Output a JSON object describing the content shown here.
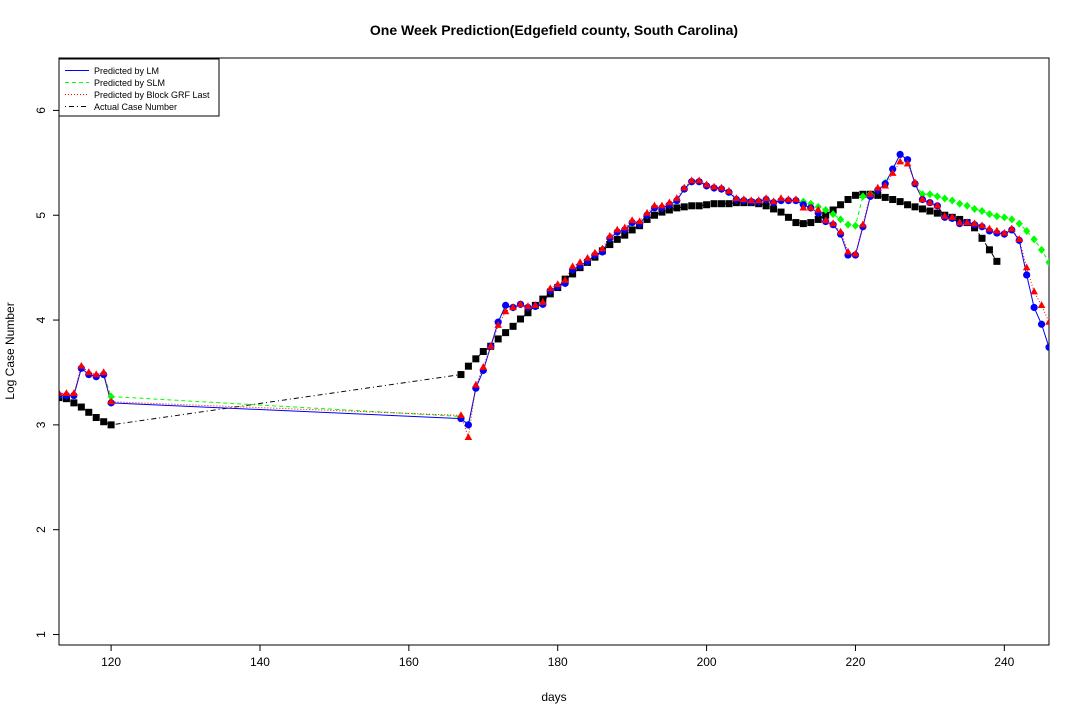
{
  "chart_data": {
    "type": "line",
    "title": "One Week Prediction(Edgefield county, South Carolina)",
    "xlabel": "days",
    "ylabel": "Log Case Number",
    "xlim": [
      113,
      246
    ],
    "ylim": [
      0.9,
      6.5
    ],
    "x_ticks": [
      120,
      140,
      160,
      180,
      200,
      220,
      240
    ],
    "y_ticks": [
      1,
      2,
      3,
      4,
      5,
      6
    ],
    "grid": false,
    "legend_position": "top-left",
    "series": [
      {
        "name": "Predicted by LM",
        "color": "#0000ff",
        "linestyle": "solid",
        "marker": "circle",
        "x": [
          113,
          114,
          115,
          116,
          117,
          118,
          119,
          120,
          167,
          168,
          169,
          170,
          171,
          172,
          173,
          174,
          175,
          176,
          177,
          178,
          179,
          180,
          181,
          182,
          183,
          184,
          185,
          186,
          187,
          188,
          189,
          190,
          191,
          192,
          193,
          194,
          195,
          196,
          197,
          198,
          199,
          200,
          201,
          202,
          203,
          204,
          205,
          206,
          207,
          208,
          209,
          210,
          211,
          212,
          213,
          214,
          215,
          216,
          217,
          218,
          219,
          220,
          221,
          222,
          223,
          224,
          225,
          226,
          227,
          228,
          229,
          230,
          231,
          232,
          233,
          234,
          235,
          236,
          237,
          238,
          239,
          240,
          241,
          242,
          243,
          244,
          245,
          246
        ],
        "y": [
          3.28,
          3.28,
          3.28,
          3.54,
          3.48,
          3.46,
          3.48,
          3.21,
          3.06,
          3.0,
          3.35,
          3.52,
          3.75,
          3.98,
          4.14,
          4.12,
          4.15,
          4.12,
          4.13,
          4.15,
          4.28,
          4.32,
          4.35,
          4.48,
          4.52,
          4.56,
          4.62,
          4.65,
          4.78,
          4.84,
          4.86,
          4.93,
          4.92,
          5.0,
          5.07,
          5.07,
          5.1,
          5.14,
          5.25,
          5.32,
          5.32,
          5.28,
          5.26,
          5.25,
          5.22,
          5.15,
          5.14,
          5.13,
          5.13,
          5.15,
          5.12,
          5.14,
          5.14,
          5.14,
          5.1,
          5.07,
          5.02,
          4.94,
          4.91,
          4.82,
          4.62,
          4.62,
          4.89,
          5.18,
          5.24,
          5.3,
          5.44,
          5.58,
          5.53,
          5.3,
          5.15,
          5.12,
          5.09,
          4.98,
          4.97,
          4.92,
          4.93,
          4.91,
          4.89,
          4.85,
          4.83,
          4.82,
          4.86,
          4.76,
          4.43,
          4.12,
          3.96,
          3.74
        ]
      },
      {
        "name": "Predicted by SLM",
        "color": "#00ff00",
        "linestyle": "dashed",
        "marker": "diamond",
        "x": [
          113,
          114,
          115,
          116,
          117,
          118,
          119,
          120,
          167,
          168,
          169,
          170,
          171,
          172,
          173,
          174,
          175,
          176,
          177,
          178,
          179,
          180,
          181,
          182,
          183,
          184,
          185,
          186,
          187,
          188,
          189,
          190,
          191,
          192,
          193,
          194,
          195,
          196,
          197,
          198,
          199,
          200,
          201,
          202,
          203,
          204,
          205,
          206,
          207,
          208,
          209,
          210,
          211,
          212,
          213,
          214,
          215,
          216,
          217,
          218,
          219,
          220,
          221,
          222,
          223,
          224,
          225,
          226,
          227,
          228,
          229,
          230,
          231,
          232,
          233,
          234,
          235,
          236,
          237,
          238,
          239,
          240,
          241,
          242,
          243,
          244,
          245,
          246
        ],
        "y": [
          3.28,
          3.28,
          3.29,
          3.54,
          3.48,
          3.46,
          3.48,
          3.27,
          3.08,
          3.0,
          3.35,
          3.52,
          3.75,
          3.98,
          4.14,
          4.12,
          4.15,
          4.12,
          4.13,
          4.15,
          4.28,
          4.32,
          4.35,
          4.48,
          4.52,
          4.56,
          4.62,
          4.65,
          4.78,
          4.84,
          4.86,
          4.93,
          4.92,
          5.0,
          5.07,
          5.07,
          5.1,
          5.14,
          5.25,
          5.32,
          5.32,
          5.28,
          5.26,
          5.25,
          5.22,
          5.15,
          5.14,
          5.13,
          5.13,
          5.15,
          5.12,
          5.14,
          5.14,
          5.14,
          5.13,
          5.11,
          5.08,
          5.05,
          5.01,
          4.96,
          4.91,
          4.9,
          5.18,
          5.2,
          5.24,
          5.31,
          5.44,
          5.58,
          5.52,
          5.3,
          5.2,
          5.2,
          5.18,
          5.16,
          5.14,
          5.11,
          5.09,
          5.06,
          5.04,
          5.01,
          4.99,
          4.98,
          4.96,
          4.92,
          4.85,
          4.77,
          4.67,
          4.55
        ]
      },
      {
        "name": "Predicted by Block GRF Last",
        "color": "#ff0000",
        "linestyle": "dotted",
        "marker": "triangle",
        "x": [
          113,
          114,
          115,
          116,
          117,
          118,
          119,
          120,
          167,
          168,
          169,
          170,
          171,
          172,
          173,
          174,
          175,
          176,
          177,
          178,
          179,
          180,
          181,
          182,
          183,
          184,
          185,
          186,
          187,
          188,
          189,
          190,
          191,
          192,
          193,
          194,
          195,
          196,
          197,
          198,
          199,
          200,
          201,
          202,
          203,
          204,
          205,
          206,
          207,
          208,
          209,
          210,
          211,
          212,
          213,
          214,
          215,
          216,
          217,
          218,
          219,
          220,
          221,
          222,
          223,
          224,
          225,
          226,
          227,
          228,
          229,
          230,
          231,
          232,
          233,
          234,
          235,
          236,
          237,
          238,
          239,
          240,
          241,
          242,
          243,
          244,
          245,
          246
        ],
        "y": [
          3.3,
          3.3,
          3.3,
          3.56,
          3.5,
          3.48,
          3.5,
          3.22,
          3.09,
          2.88,
          3.38,
          3.55,
          3.75,
          3.95,
          4.08,
          4.12,
          4.15,
          4.13,
          4.14,
          4.17,
          4.3,
          4.34,
          4.38,
          4.51,
          4.55,
          4.59,
          4.64,
          4.68,
          4.8,
          4.86,
          4.88,
          4.95,
          4.94,
          5.02,
          5.09,
          5.09,
          5.12,
          5.16,
          5.26,
          5.33,
          5.33,
          5.29,
          5.27,
          5.26,
          5.23,
          5.16,
          5.15,
          5.14,
          5.14,
          5.16,
          5.13,
          5.16,
          5.15,
          5.15,
          5.07,
          5.07,
          5.05,
          4.95,
          4.92,
          4.84,
          4.65,
          4.63,
          4.91,
          5.2,
          5.26,
          5.28,
          5.4,
          5.51,
          5.49,
          5.31,
          5.15,
          5.12,
          5.09,
          4.99,
          4.98,
          4.93,
          4.93,
          4.92,
          4.9,
          4.87,
          4.85,
          4.83,
          4.87,
          4.77,
          4.5,
          4.27,
          4.14,
          3.98
        ]
      },
      {
        "name": "Actual Case Number",
        "color": "#000000",
        "linestyle": "dotdash",
        "marker": "square",
        "x": [
          113,
          114,
          115,
          116,
          117,
          118,
          119,
          120,
          167,
          168,
          169,
          170,
          171,
          172,
          173,
          174,
          175,
          176,
          177,
          178,
          179,
          180,
          181,
          182,
          183,
          184,
          185,
          186,
          187,
          188,
          189,
          190,
          191,
          192,
          193,
          194,
          195,
          196,
          197,
          198,
          199,
          200,
          201,
          202,
          203,
          204,
          205,
          206,
          207,
          208,
          209,
          210,
          211,
          212,
          213,
          214,
          215,
          216,
          217,
          218,
          219,
          220,
          221,
          222,
          223,
          224,
          225,
          226,
          227,
          228,
          229,
          230,
          231,
          232,
          233,
          234,
          235,
          236,
          237,
          238,
          239,
          240,
          241,
          242,
          243,
          244,
          245,
          246
        ],
        "y": [
          3.26,
          3.25,
          3.21,
          3.17,
          3.12,
          3.07,
          3.03,
          3.0,
          3.48,
          3.56,
          3.63,
          3.7,
          3.75,
          3.82,
          3.88,
          3.94,
          4.01,
          4.07,
          4.14,
          4.2,
          4.25,
          4.31,
          4.39,
          4.44,
          4.5,
          4.55,
          4.6,
          4.66,
          4.72,
          4.77,
          4.81,
          4.86,
          4.9,
          4.96,
          5.0,
          5.03,
          5.05,
          5.07,
          5.08,
          5.09,
          5.09,
          5.1,
          5.11,
          5.11,
          5.11,
          5.12,
          5.12,
          5.12,
          5.11,
          5.09,
          5.06,
          5.03,
          4.98,
          4.93,
          4.92,
          4.93,
          4.96,
          5.0,
          5.05,
          5.1,
          5.15,
          5.19,
          5.2,
          5.2,
          5.19,
          5.17,
          5.15,
          5.13,
          5.1,
          5.08,
          5.06,
          5.04,
          5.02,
          5.0,
          4.98,
          4.96,
          4.93,
          4.88,
          4.78,
          4.67,
          4.56,
          null,
          null,
          null,
          null,
          null,
          null,
          null
        ]
      }
    ]
  }
}
